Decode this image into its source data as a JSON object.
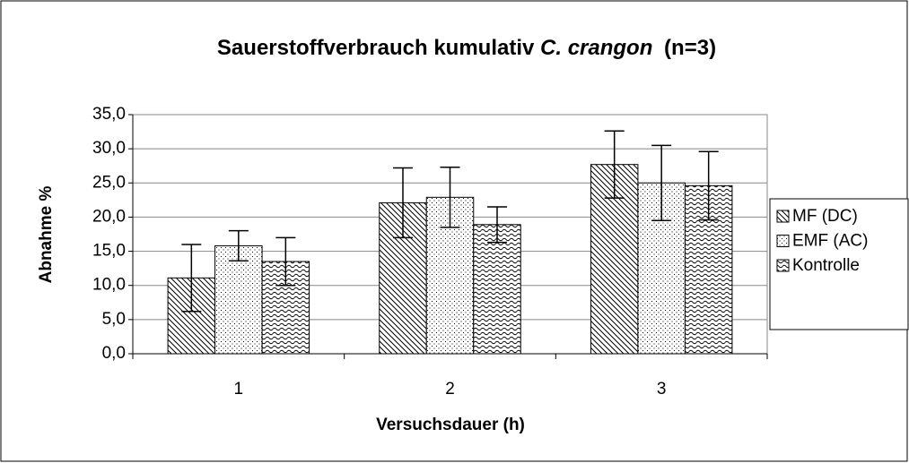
{
  "chart_data": {
    "type": "bar",
    "title": [
      "Sauerstoffverbrauch kumulativ",
      "C. crangon",
      "(n=3)"
    ],
    "x_label": "Versuchsdauer (h)",
    "y_label": "Abnahme %",
    "categories": [
      "1",
      "2",
      "3"
    ],
    "series": [
      {
        "name": "MF (DC)",
        "color": "#000000",
        "values": [
          11.1,
          22.1,
          27.7
        ],
        "errors": [
          4.9,
          5.1,
          4.9
        ]
      },
      {
        "name": "EMF (AC)",
        "color": "#000000",
        "values": [
          15.8,
          22.9,
          25.0
        ],
        "errors": [
          2.2,
          4.4,
          5.5
        ]
      },
      {
        "name": "Kontrolle",
        "color": "#000000",
        "values": [
          13.5,
          18.9,
          24.6
        ],
        "errors": [
          3.5,
          2.6,
          5.0
        ]
      }
    ],
    "ylim": [
      0,
      35
    ],
    "yticks": [
      {
        "value": 0,
        "label": "0,0"
      },
      {
        "value": 5,
        "label": "5,0"
      },
      {
        "value": 10,
        "label": "10,0"
      },
      {
        "value": 15,
        "label": "15,0"
      },
      {
        "value": 20,
        "label": "20,0"
      },
      {
        "value": 25,
        "label": "25,0"
      },
      {
        "value": 30,
        "label": "30,0"
      },
      {
        "value": 35,
        "label": "35,0"
      }
    ],
    "grid": true,
    "legend": "right"
  }
}
